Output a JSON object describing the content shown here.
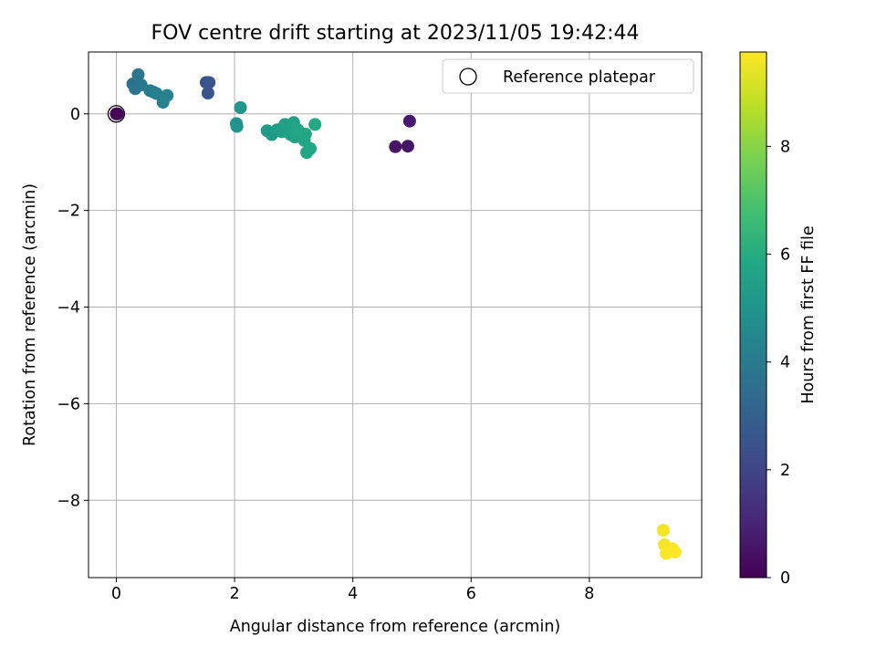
{
  "chart_data": {
    "type": "scatter",
    "title": "FOV centre drift starting at 2023/11/05 19:42:44",
    "xlabel": "Angular distance from reference (arcmin)",
    "ylabel": "Rotation from reference (arcmin)",
    "colorbar_label": "Hours from first FF file",
    "xlim": [
      -0.47,
      9.9
    ],
    "ylim": [
      -9.6,
      1.28
    ],
    "clim": [
      0,
      9.75
    ],
    "x_ticks": [
      0,
      2,
      4,
      6,
      8
    ],
    "y_ticks": [
      0,
      -2,
      -4,
      -6,
      -8
    ],
    "colorbar_ticks": [
      0,
      2,
      4,
      6,
      8
    ],
    "tick_labels": {
      "x": [
        "0",
        "2",
        "4",
        "6",
        "8"
      ],
      "y": [
        "0",
        "−2",
        "−4",
        "−6",
        "−8"
      ],
      "colorbar": [
        "0",
        "2",
        "4",
        "6",
        "8"
      ]
    },
    "grid": true,
    "colormap": "viridis",
    "legend": {
      "placement": "top-right",
      "entries": [
        "Reference platepar"
      ]
    },
    "reference_point": {
      "x": 0,
      "y": 0
    },
    "points": [
      {
        "x": 0.0,
        "y": 0.0,
        "t": 0.05
      },
      {
        "x": 0.02,
        "y": 0.0,
        "t": 0.1
      },
      {
        "x": 4.72,
        "y": -0.68,
        "t": 0.5
      },
      {
        "x": 4.93,
        "y": -0.67,
        "t": 0.6
      },
      {
        "x": 4.96,
        "y": -0.15,
        "t": 0.7
      },
      {
        "x": 1.52,
        "y": 0.65,
        "t": 2.4
      },
      {
        "x": 1.57,
        "y": 0.65,
        "t": 2.5
      },
      {
        "x": 1.55,
        "y": 0.43,
        "t": 2.6
      },
      {
        "x": 0.28,
        "y": 0.62,
        "t": 3.6
      },
      {
        "x": 0.32,
        "y": 0.52,
        "t": 3.7
      },
      {
        "x": 0.37,
        "y": 0.81,
        "t": 3.8
      },
      {
        "x": 0.42,
        "y": 0.6,
        "t": 3.9
      },
      {
        "x": 0.57,
        "y": 0.48,
        "t": 4.0
      },
      {
        "x": 0.63,
        "y": 0.45,
        "t": 4.0
      },
      {
        "x": 0.68,
        "y": 0.42,
        "t": 4.1
      },
      {
        "x": 0.79,
        "y": 0.24,
        "t": 4.2
      },
      {
        "x": 0.86,
        "y": 0.38,
        "t": 4.3
      },
      {
        "x": 2.03,
        "y": -0.2,
        "t": 5.0
      },
      {
        "x": 2.04,
        "y": -0.26,
        "t": 5.0
      },
      {
        "x": 2.1,
        "y": 0.13,
        "t": 5.1
      },
      {
        "x": 2.55,
        "y": -0.35,
        "t": 5.3
      },
      {
        "x": 2.63,
        "y": -0.43,
        "t": 5.3
      },
      {
        "x": 2.72,
        "y": -0.33,
        "t": 5.4
      },
      {
        "x": 2.8,
        "y": -0.37,
        "t": 5.4
      },
      {
        "x": 2.85,
        "y": -0.22,
        "t": 5.5
      },
      {
        "x": 2.9,
        "y": -0.3,
        "t": 5.5
      },
      {
        "x": 2.95,
        "y": -0.43,
        "t": 5.6
      },
      {
        "x": 3.0,
        "y": -0.18,
        "t": 5.6
      },
      {
        "x": 3.02,
        "y": -0.48,
        "t": 5.6
      },
      {
        "x": 3.07,
        "y": -0.33,
        "t": 5.7
      },
      {
        "x": 3.12,
        "y": -0.4,
        "t": 5.7
      },
      {
        "x": 3.18,
        "y": -0.55,
        "t": 5.7
      },
      {
        "x": 3.2,
        "y": -0.42,
        "t": 5.8
      },
      {
        "x": 3.22,
        "y": -0.8,
        "t": 5.8
      },
      {
        "x": 3.28,
        "y": -0.72,
        "t": 5.8
      },
      {
        "x": 3.36,
        "y": -0.22,
        "t": 5.9
      },
      {
        "x": 9.25,
        "y": -8.62,
        "t": 9.6
      },
      {
        "x": 9.27,
        "y": -8.92,
        "t": 9.65
      },
      {
        "x": 9.3,
        "y": -9.1,
        "t": 9.7
      },
      {
        "x": 9.35,
        "y": -9.05,
        "t": 9.7
      },
      {
        "x": 9.4,
        "y": -9.0,
        "t": 9.72
      },
      {
        "x": 9.45,
        "y": -9.07,
        "t": 9.75
      }
    ]
  }
}
